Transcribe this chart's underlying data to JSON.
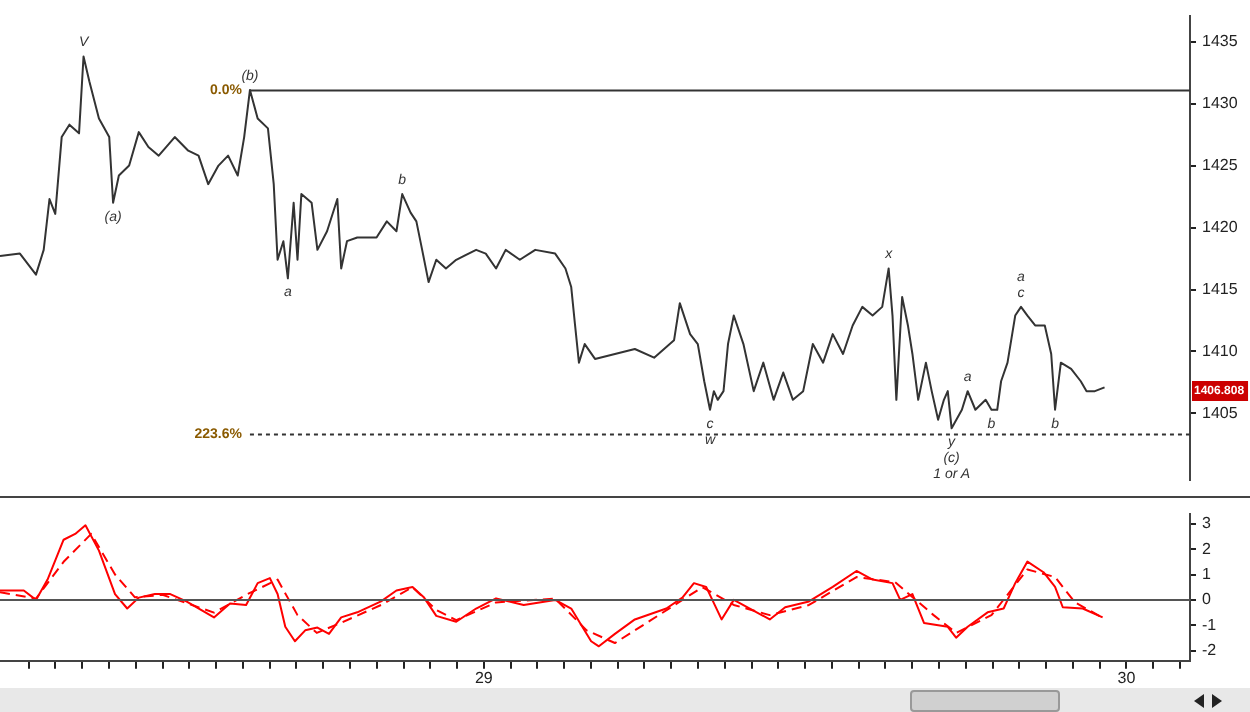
{
  "chart_data": [
    {
      "type": "line",
      "xlim": [
        28.247,
        30.099
      ],
      "ylim": [
        1399.6,
        1437.1
      ],
      "yticks": [
        1405,
        1410,
        1415,
        1420,
        1425,
        1430,
        1435
      ],
      "tick_labels": "y",
      "grid": false,
      "legend": false,
      "marker": "none",
      "ref_lines": [
        {
          "axis": "y",
          "value": 1431.06,
          "color": "#333333",
          "line_style": "solid"
        },
        {
          "axis": "y",
          "value": 1403.3,
          "color": "#333333",
          "line_style": "dotted"
        }
      ],
      "annotations": [
        {
          "text": "0.0%",
          "x": 28.636,
          "y": 1431.06
        },
        {
          "text": "223.6%",
          "x": 28.636,
          "y": 1403.3
        },
        {
          "text": "V",
          "x": 28.377,
          "y": 1433.8
        },
        {
          "text": "(b)",
          "x": 28.636,
          "y": 1431.1
        },
        {
          "text": "(a)",
          "x": 28.423,
          "y": 1422.0
        },
        {
          "text": "a",
          "x": 28.695,
          "y": 1415.9
        },
        {
          "text": "b",
          "x": 28.873,
          "y": 1422.7
        },
        {
          "text": "c",
          "x": 29.352,
          "y": 1405.3
        },
        {
          "text": "w",
          "x": 29.352,
          "y": 1405.3
        },
        {
          "text": "x",
          "x": 29.63,
          "y": 1416.7
        },
        {
          "text": "a",
          "x": 29.753,
          "y": 1406.8
        },
        {
          "text": "y",
          "x": 29.728,
          "y": 1403.8
        },
        {
          "text": "(c)",
          "x": 29.728,
          "y": 1403.8
        },
        {
          "text": "1 or A",
          "x": 29.728,
          "y": 1403.8
        },
        {
          "text": "b",
          "x": 29.79,
          "y": 1405.3
        },
        {
          "text": "c",
          "x": 29.836,
          "y": 1413.6
        },
        {
          "text": "a",
          "x": 29.836,
          "y": 1413.6
        },
        {
          "text": "b",
          "x": 29.889,
          "y": 1405.3
        },
        {
          "text": "1406.808",
          "y": 1406.808
        }
      ],
      "series": [
        {
          "color": "#333333",
          "x": [
            28.247,
            28.278,
            28.303,
            28.315,
            28.324,
            28.333,
            28.343,
            28.355,
            28.37,
            28.377,
            28.386,
            28.401,
            28.417,
            28.423,
            28.432,
            28.448,
            28.463,
            28.478,
            28.494,
            28.519,
            28.54,
            28.556,
            28.571,
            28.587,
            28.602,
            28.617,
            28.627,
            28.636,
            28.648,
            28.664,
            28.673,
            28.679,
            28.688,
            28.695,
            28.704,
            28.71,
            28.716,
            28.732,
            28.741,
            28.756,
            28.772,
            28.778,
            28.787,
            28.803,
            28.833,
            28.849,
            28.864,
            28.873,
            28.886,
            28.895,
            28.904,
            28.914,
            28.926,
            28.941,
            28.957,
            28.988,
            29.003,
            29.019,
            29.034,
            29.056,
            29.08,
            29.111,
            29.127,
            29.136,
            29.142,
            29.148,
            29.157,
            29.173,
            29.204,
            29.235,
            29.265,
            29.296,
            29.305,
            29.321,
            29.333,
            29.343,
            29.352,
            29.358,
            29.364,
            29.373,
            29.38,
            29.389,
            29.404,
            29.42,
            29.435,
            29.451,
            29.466,
            29.481,
            29.497,
            29.512,
            29.528,
            29.543,
            29.559,
            29.574,
            29.589,
            29.605,
            29.62,
            29.63,
            29.636,
            29.642,
            29.651,
            29.66,
            29.667,
            29.676,
            29.688,
            29.697,
            29.707,
            29.716,
            29.722,
            29.728,
            29.744,
            29.753,
            29.765,
            29.781,
            29.79,
            29.799,
            29.805,
            29.815,
            29.827,
            29.836,
            29.846,
            29.858,
            29.873,
            29.883,
            29.889,
            29.898,
            29.914,
            29.929,
            29.938,
            29.951,
            29.966
          ],
          "values": [
            1417.7,
            1417.9,
            1416.2,
            1418.2,
            1422.3,
            1421.1,
            1427.3,
            1428.3,
            1427.6,
            1433.8,
            1431.8,
            1428.8,
            1427.3,
            1422.0,
            1424.2,
            1425.0,
            1427.7,
            1426.5,
            1425.8,
            1427.3,
            1426.2,
            1425.8,
            1423.5,
            1425.0,
            1425.8,
            1424.2,
            1427.3,
            1431.1,
            1428.8,
            1428.0,
            1423.5,
            1417.4,
            1418.9,
            1415.9,
            1422.0,
            1417.4,
            1422.7,
            1422.0,
            1418.2,
            1419.7,
            1422.3,
            1416.7,
            1418.9,
            1419.2,
            1419.2,
            1420.5,
            1419.7,
            1422.7,
            1421.2,
            1420.5,
            1418.2,
            1415.6,
            1417.4,
            1416.7,
            1417.4,
            1418.2,
            1417.9,
            1416.7,
            1418.2,
            1417.4,
            1418.2,
            1417.9,
            1416.7,
            1415.2,
            1412.1,
            1409.1,
            1410.6,
            1409.4,
            1409.8,
            1410.2,
            1409.5,
            1410.9,
            1413.9,
            1411.4,
            1410.6,
            1407.6,
            1405.3,
            1406.8,
            1406.1,
            1406.8,
            1410.6,
            1412.9,
            1410.6,
            1406.8,
            1409.1,
            1406.1,
            1408.3,
            1406.1,
            1406.8,
            1410.6,
            1409.1,
            1411.4,
            1409.8,
            1412.1,
            1413.6,
            1412.9,
            1413.6,
            1416.7,
            1412.9,
            1406.1,
            1414.4,
            1412.1,
            1409.8,
            1406.1,
            1409.1,
            1406.8,
            1404.5,
            1406.1,
            1406.8,
            1403.8,
            1405.3,
            1406.8,
            1405.3,
            1406.1,
            1405.3,
            1405.3,
            1407.6,
            1409.1,
            1412.9,
            1413.6,
            1412.9,
            1412.1,
            1412.1,
            1409.8,
            1405.3,
            1409.1,
            1408.6,
            1407.6,
            1406.8,
            1406.8,
            1407.1
          ]
        }
      ]
    },
    {
      "type": "line",
      "xlim": [
        28.247,
        30.099
      ],
      "ylim": [
        -2.4,
        3.4
      ],
      "yticks": [
        -2,
        -1,
        0,
        1,
        2,
        3
      ],
      "grid": false,
      "legend": false,
      "marker": "none",
      "xticks": [
        {
          "value": 28.2917,
          "label": null
        },
        {
          "value": 28.3333,
          "label": null
        },
        {
          "value": 28.375,
          "label": null
        },
        {
          "value": 28.4167,
          "label": null
        },
        {
          "value": 28.4583,
          "label": null
        },
        {
          "value": 28.5,
          "label": null
        },
        {
          "value": 28.5417,
          "label": null
        },
        {
          "value": 28.5833,
          "label": null
        },
        {
          "value": 28.625,
          "label": null
        },
        {
          "value": 28.6667,
          "label": null
        },
        {
          "value": 28.7083,
          "label": null
        },
        {
          "value": 28.75,
          "label": null
        },
        {
          "value": 28.7917,
          "label": null
        },
        {
          "value": 28.8333,
          "label": null
        },
        {
          "value": 28.875,
          "label": null
        },
        {
          "value": 28.9167,
          "label": null
        },
        {
          "value": 28.9583,
          "label": null
        },
        29,
        {
          "value": 29.0417,
          "label": null
        },
        {
          "value": 29.0833,
          "label": null
        },
        {
          "value": 29.125,
          "label": null
        },
        {
          "value": 29.1667,
          "label": null
        },
        {
          "value": 29.2083,
          "label": null
        },
        {
          "value": 29.25,
          "label": null
        },
        {
          "value": 29.2917,
          "label": null
        },
        {
          "value": 29.3333,
          "label": null
        },
        {
          "value": 29.375,
          "label": null
        },
        {
          "value": 29.4167,
          "label": null
        },
        {
          "value": 29.4583,
          "label": null
        },
        {
          "value": 29.5,
          "label": null
        },
        {
          "value": 29.5417,
          "label": null
        },
        {
          "value": 29.5833,
          "label": null
        },
        {
          "value": 29.625,
          "label": null
        },
        {
          "value": 29.6667,
          "label": null
        },
        {
          "value": 29.7083,
          "label": null
        },
        {
          "value": 29.75,
          "label": null
        },
        {
          "value": 29.7917,
          "label": null
        },
        {
          "value": 29.8333,
          "label": null
        },
        {
          "value": 29.875,
          "label": null
        },
        {
          "value": 29.9167,
          "label": null
        },
        {
          "value": 29.9583,
          "label": null
        },
        30,
        {
          "value": 30.0417,
          "label": null
        },
        {
          "value": 30.0833,
          "label": null
        }
      ],
      "ref_lines": [
        {
          "axis": "y",
          "value": 0,
          "color": "#555555",
          "line_style": "solid"
        }
      ],
      "series": [
        {
          "color": "#ff0000",
          "line_style": "solid",
          "x": [
            28.247,
            28.284,
            28.303,
            28.321,
            28.346,
            28.364,
            28.38,
            28.401,
            28.426,
            28.445,
            28.463,
            28.488,
            28.512,
            28.537,
            28.58,
            28.605,
            28.63,
            28.648,
            28.667,
            28.679,
            28.691,
            28.706,
            28.722,
            28.741,
            28.759,
            28.778,
            28.803,
            28.84,
            28.864,
            28.889,
            28.907,
            28.926,
            28.957,
            28.988,
            29.019,
            29.062,
            29.111,
            29.136,
            29.167,
            29.179,
            29.204,
            29.235,
            29.284,
            29.309,
            29.327,
            29.346,
            29.37,
            29.389,
            29.414,
            29.445,
            29.469,
            29.506,
            29.543,
            29.58,
            29.605,
            29.636,
            29.648,
            29.667,
            29.685,
            29.722,
            29.735,
            29.753,
            29.784,
            29.809,
            29.827,
            29.846,
            29.871,
            29.889,
            29.901,
            29.932,
            29.963
          ],
          "values": [
            0.37,
            0.37,
            0,
            0.8,
            2.37,
            2.6,
            2.94,
            1.94,
            0.23,
            -0.34,
            0.09,
            0.23,
            0.23,
            -0.06,
            -0.69,
            -0.14,
            -0.2,
            0.66,
            0.86,
            0.23,
            -1.06,
            -1.63,
            -1.2,
            -1.09,
            -1.34,
            -0.69,
            -0.49,
            -0.06,
            0.37,
            0.51,
            0.09,
            -0.63,
            -0.86,
            -0.34,
            0.06,
            -0.2,
            0,
            -0.34,
            -1.63,
            -1.83,
            -1.34,
            -0.77,
            -0.34,
            0.09,
            0.66,
            0.51,
            -0.77,
            0,
            -0.34,
            -0.77,
            -0.29,
            -0.06,
            0.51,
            1.14,
            0.8,
            0.66,
            0,
            0.23,
            -0.91,
            -1.06,
            -1.49,
            -1.06,
            -0.49,
            -0.34,
            0.66,
            1.51,
            1.09,
            0.51,
            -0.29,
            -0.34,
            -0.69
          ]
        },
        {
          "color": "#ff0000",
          "line_style": "dashed",
          "x": [
            28.247,
            28.303,
            28.346,
            28.389,
            28.426,
            28.457,
            28.5,
            28.58,
            28.63,
            28.679,
            28.71,
            28.74,
            28.778,
            28.84,
            28.889,
            28.926,
            28.957,
            29.019,
            29.111,
            29.16,
            29.204,
            29.26,
            29.34,
            29.389,
            29.445,
            29.506,
            29.58,
            29.64,
            29.7,
            29.735,
            29.79,
            29.846,
            29.889,
            29.92,
            29.963
          ],
          "values": [
            0.3,
            0.05,
            1.5,
            2.6,
            1.0,
            0.1,
            0.2,
            -0.5,
            0.2,
            0.8,
            -0.6,
            -1.3,
            -0.9,
            -0.2,
            0.5,
            -0.4,
            -0.8,
            -0.1,
            0.05,
            -1.2,
            -1.7,
            -0.8,
            0.5,
            -0.2,
            -0.6,
            -0.2,
            0.9,
            0.7,
            -0.6,
            -1.3,
            -0.6,
            1.2,
            0.9,
            -0.1,
            -0.7
          ]
        }
      ]
    }
  ]
}
